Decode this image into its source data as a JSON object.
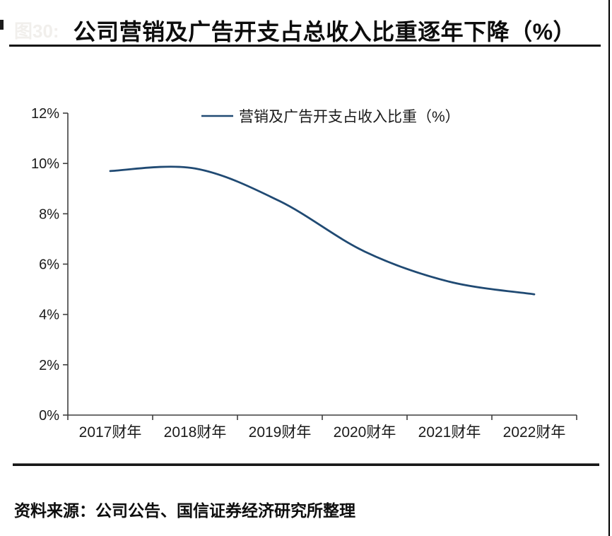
{
  "header": {
    "figure_label": "图30:",
    "title": "公司营销及广告开支占总收入比重逐年下降（%）"
  },
  "footer": {
    "source": "资料来源：公司公告、国信证券经济研究所整理"
  },
  "colors": {
    "line": "#204a73",
    "axis": "#3f3f3f",
    "tick_text": "#1a1a1a"
  },
  "chart_data": {
    "type": "line",
    "title": "公司营销及广告开支占总收入比重逐年下降（%）",
    "categories": [
      "2017财年",
      "2018财年",
      "2019财年",
      "2020财年",
      "2021财年",
      "2022财年"
    ],
    "series": [
      {
        "name": "营销及广告开支占收入比重（%）",
        "values": [
          9.7,
          9.8,
          8.5,
          6.5,
          5.3,
          4.8
        ]
      }
    ],
    "xlabel": "",
    "ylabel": "",
    "ylim": [
      0,
      12
    ],
    "ytick_step": 2,
    "ytick_labels": [
      "0%",
      "2%",
      "4%",
      "6%",
      "8%",
      "10%",
      "12%"
    ],
    "grid": false,
    "legend_position": "top-center",
    "smooth_line": true
  }
}
